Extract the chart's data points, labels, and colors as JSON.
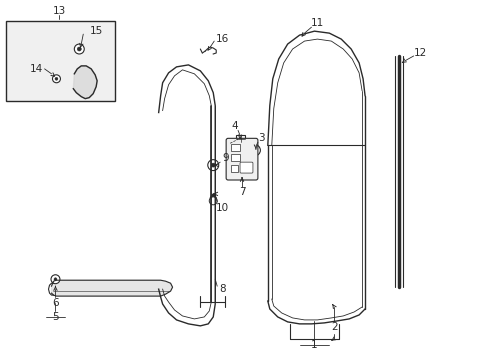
{
  "bg_color": "#ffffff",
  "line_color": "#2a2a2a",
  "figsize": [
    4.89,
    3.6
  ],
  "dpi": 100,
  "door_seal_outer": {
    "x": [
      1.58,
      1.6,
      1.62,
      1.68,
      1.76,
      1.88,
      2.0,
      2.08,
      2.13,
      2.15,
      2.15,
      2.13,
      2.08,
      2.0,
      1.88,
      1.76,
      1.68,
      1.62,
      1.6,
      1.58
    ],
    "y": [
      0.7,
      0.62,
      0.55,
      0.46,
      0.39,
      0.35,
      0.33,
      0.35,
      0.42,
      0.55,
      2.55,
      2.68,
      2.8,
      2.9,
      2.96,
      2.94,
      2.88,
      2.78,
      2.65,
      2.48
    ]
  },
  "door_seal_inner": {
    "x": [
      1.62,
      1.64,
      1.68,
      1.74,
      1.82,
      1.92,
      2.02,
      2.08,
      2.1,
      2.1,
      2.08,
      2.02,
      1.92,
      1.82,
      1.74,
      1.68,
      1.64,
      1.62
    ],
    "y": [
      0.7,
      0.63,
      0.56,
      0.48,
      0.42,
      0.38,
      0.4,
      0.46,
      0.55,
      2.55,
      2.65,
      2.78,
      2.88,
      2.9,
      2.84,
      2.76,
      2.63,
      2.5
    ]
  }
}
